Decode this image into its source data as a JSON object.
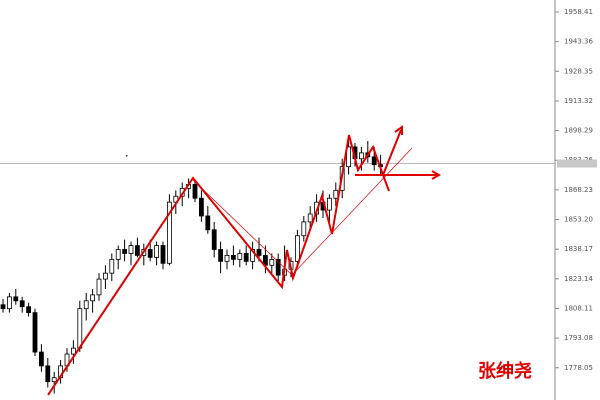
{
  "chart_data": {
    "type": "candlestick",
    "ylim": [
      1761.7,
      1964.5
    ],
    "yticks": [
      1958.41,
      1943.36,
      1928.35,
      1913.32,
      1898.29,
      1883.26,
      1868.23,
      {
        "value": 1853.2,
        "label": "1853.20"
      },
      1838.17,
      1823.14,
      1808.11,
      1793.08,
      1778.05
    ],
    "current_price": 1881.6,
    "watermark": "张绅尧",
    "up_color": "#ffffff",
    "down_color": "#000000",
    "ohlc": [
      [
        1810,
        1813,
        1806,
        1808
      ],
      [
        1808,
        1816,
        1806,
        1814
      ],
      [
        1814,
        1818,
        1810,
        1812
      ],
      [
        1812,
        1814,
        1806,
        1809
      ],
      [
        1809,
        1811,
        1804,
        1806
      ],
      [
        1806,
        1808,
        1784,
        1786
      ],
      [
        1786,
        1790,
        1776,
        1779
      ],
      [
        1779,
        1783,
        1768,
        1771
      ],
      [
        1771,
        1776,
        1765,
        1773
      ],
      [
        1773,
        1782,
        1770,
        1779
      ],
      [
        1779,
        1788,
        1776,
        1785
      ],
      [
        1785,
        1792,
        1780,
        1788
      ],
      [
        1788,
        1812,
        1786,
        1808
      ],
      [
        1808,
        1816,
        1802,
        1812
      ],
      [
        1812,
        1818,
        1806,
        1815
      ],
      [
        1815,
        1826,
        1812,
        1823
      ],
      [
        1823,
        1830,
        1818,
        1826
      ],
      [
        1826,
        1836,
        1822,
        1833
      ],
      [
        1833,
        1840,
        1828,
        1838
      ],
      [
        1838,
        1843,
        1832,
        1836
      ],
      [
        1836,
        1842,
        1830,
        1840
      ],
      [
        1840,
        1844,
        1834,
        1835
      ],
      [
        1835,
        1841,
        1830,
        1838
      ],
      [
        1838,
        1843,
        1832,
        1834
      ],
      [
        1834,
        1842,
        1830,
        1840
      ],
      [
        1840,
        1842,
        1828,
        1831
      ],
      [
        1831,
        1866,
        1830,
        1862
      ],
      [
        1862,
        1868,
        1856,
        1865
      ],
      [
        1865,
        1872,
        1860,
        1869
      ],
      [
        1869,
        1874,
        1864,
        1871
      ],
      [
        1871,
        1873,
        1862,
        1864
      ],
      [
        1864,
        1868,
        1852,
        1855
      ],
      [
        1855,
        1860,
        1846,
        1848
      ],
      [
        1848,
        1852,
        1834,
        1838
      ],
      [
        1838,
        1842,
        1826,
        1832
      ],
      [
        1832,
        1838,
        1828,
        1835
      ],
      [
        1835,
        1840,
        1830,
        1833
      ],
      [
        1833,
        1838,
        1829,
        1836
      ],
      [
        1836,
        1840,
        1830,
        1832
      ],
      [
        1832,
        1842,
        1828,
        1838
      ],
      [
        1838,
        1844,
        1832,
        1835
      ],
      [
        1835,
        1840,
        1826,
        1830
      ],
      [
        1830,
        1836,
        1825,
        1833
      ],
      [
        1833,
        1836,
        1822,
        1825
      ],
      [
        1825,
        1840,
        1822,
        1828
      ],
      [
        1828,
        1834,
        1824,
        1832
      ],
      [
        1832,
        1848,
        1830,
        1845
      ],
      [
        1845,
        1855,
        1842,
        1852
      ],
      [
        1852,
        1860,
        1848,
        1856
      ],
      [
        1856,
        1866,
        1852,
        1862
      ],
      [
        1862,
        1868,
        1854,
        1858
      ],
      [
        1858,
        1866,
        1852,
        1864
      ],
      [
        1864,
        1872,
        1860,
        1868
      ],
      [
        1868,
        1884,
        1864,
        1880
      ],
      [
        1880,
        1896,
        1876,
        1890
      ],
      [
        1890,
        1892,
        1880,
        1884
      ],
      [
        1884,
        1890,
        1878,
        1887
      ],
      [
        1887,
        1893,
        1882,
        1885
      ],
      [
        1885,
        1890,
        1878,
        1881
      ],
      [
        1881,
        1886,
        1876,
        1880
      ]
    ]
  }
}
